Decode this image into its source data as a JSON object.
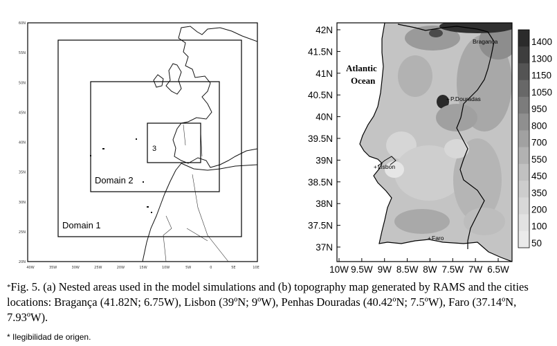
{
  "panel_a": {
    "domains": [
      {
        "label": "Domain 1"
      },
      {
        "label": "Domain 2"
      },
      {
        "label": "3"
      }
    ],
    "left_ticks": [
      "60N",
      "55N",
      "50N",
      "45N",
      "40N",
      "35N",
      "30N",
      "25N",
      "20N"
    ],
    "bottom_ticks": [
      "40W",
      "35W",
      "30W",
      "25W",
      "20W",
      "15W",
      "10W",
      "5W",
      "0",
      "5E",
      "10E"
    ]
  },
  "panel_b": {
    "ocean_label": [
      "Atlantic",
      "Ocean"
    ],
    "lat_ticks": [
      "42N",
      "41.5N",
      "41N",
      "40.5N",
      "40N",
      "39.5N",
      "39N",
      "38.5N",
      "38N",
      "37.5N",
      "37N"
    ],
    "lon_ticks": [
      "10W",
      "9.5W",
      "9W",
      "8.5W",
      "8W",
      "7.5W",
      "7W",
      "6.5W"
    ],
    "colorbar": {
      "levels": [
        "1400",
        "1300",
        "1150",
        "1050",
        "950",
        "800",
        "700",
        "550",
        "450",
        "350",
        "200",
        "100",
        "50"
      ],
      "colors": [
        "#2b2b2b",
        "#3e3e3e",
        "#545454",
        "#686868",
        "#7c7c7c",
        "#8f8f8f",
        "#a1a1a1",
        "#b2b2b2",
        "#c1c1c1",
        "#cdcdcd",
        "#d8d8d8",
        "#e2e2e2",
        "#eaeaea"
      ]
    },
    "cities": [
      {
        "name": "Bragança"
      },
      {
        "name": "P.Douradas"
      },
      {
        "name": "Lisbon"
      },
      {
        "name": "Faro"
      }
    ]
  },
  "caption": {
    "star": "*",
    "text": "Fig. 5. (a) Nested areas used in the model simulations and (b) topography map generated by RAMS and the cities locations: Bragança (41.82N; 6.75W), Lisbon (39ºN; 9ºW), Penhas Douradas (40.42ºN; 7.5ºW), Faro (37.14ºN, 7.93ºW)."
  },
  "note": "* Ilegibilidad de origen."
}
